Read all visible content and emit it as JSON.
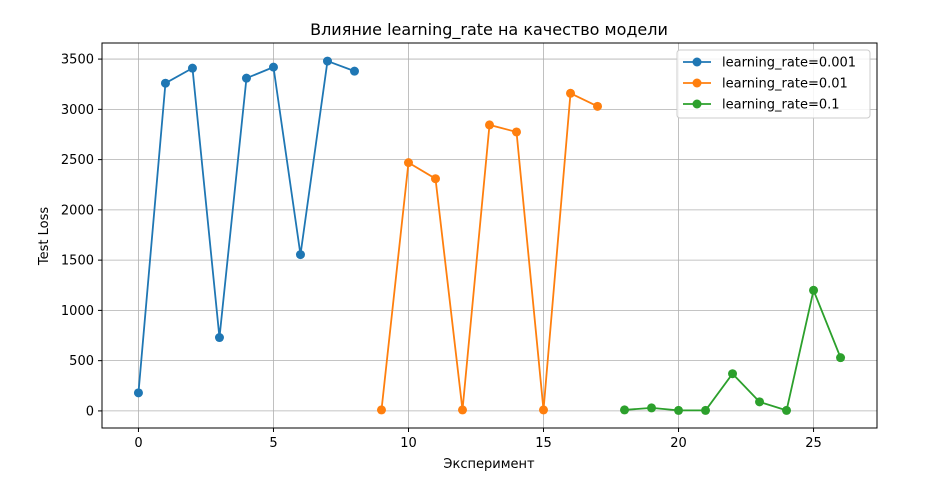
{
  "chart_data": {
    "type": "line",
    "title": "Влияние learning_rate на качество модели",
    "xlabel": "Эксперимент",
    "ylabel": "Test Loss",
    "xlim": [
      -1.35,
      27.35
    ],
    "ylim": [
      -170,
      3660
    ],
    "xticks": [
      0,
      5,
      10,
      15,
      20,
      25
    ],
    "yticks": [
      0,
      500,
      1000,
      1500,
      2000,
      2500,
      3000,
      3500
    ],
    "grid": true,
    "legend_position": "top-right",
    "series": [
      {
        "name": "learning_rate=0.001",
        "color": "#1f77b4",
        "x": [
          0,
          1,
          2,
          3,
          4,
          5,
          6,
          7,
          8
        ],
        "y": [
          180,
          3260,
          3410,
          730,
          3310,
          3420,
          1555,
          3480,
          3380
        ]
      },
      {
        "name": "learning_rate=0.01",
        "color": "#ff7f0e",
        "x": [
          9,
          10,
          11,
          12,
          13,
          14,
          15,
          16,
          17
        ],
        "y": [
          10,
          2470,
          2310,
          10,
          2845,
          2775,
          10,
          3160,
          3030
        ]
      },
      {
        "name": "learning_rate=0.1",
        "color": "#2ca02c",
        "x": [
          18,
          19,
          20,
          21,
          22,
          23,
          24,
          25,
          26
        ],
        "y": [
          10,
          30,
          5,
          5,
          370,
          90,
          5,
          1200,
          530
        ]
      }
    ]
  }
}
